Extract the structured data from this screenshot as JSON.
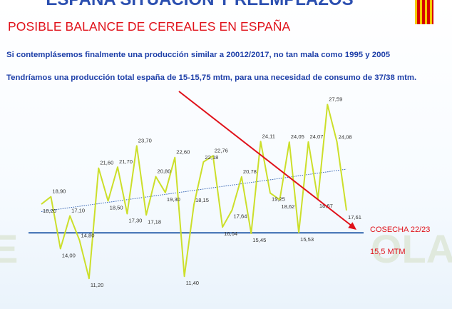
{
  "header": {
    "title": "ESPAÑA SITUACIÓN Y REEMPLAZOS",
    "subtitle": "POSIBLE BALANCE DE CEREALES EN ESPAÑA"
  },
  "notes": {
    "line1": "Si contemplásemos finalmente una producción similar a 20012/2017, no tan mala como 1995 y 2005",
    "line2": "Tendríamos una producción total españa de 15-15,75 mtm, para una necesidad de consumo de 37/38 mtm."
  },
  "watermark": {
    "left": "E",
    "right": "OLA"
  },
  "colors": {
    "series": "#ccdf2a",
    "trend": "#2f5fb0",
    "baseline": "#2e63ad",
    "arrow": "#e0111a",
    "title": "#2b4fb0",
    "subtitle": "#e0111a",
    "notes": "#1d3fa8"
  },
  "chart_data": {
    "type": "line",
    "series": [
      {
        "values": [
          18.2,
          18.9,
          14.0,
          17.1,
          14.8,
          11.2,
          21.6,
          18.5,
          21.7,
          17.3,
          23.7,
          17.18,
          20.8,
          19.3,
          22.6,
          11.4,
          18.15,
          22.18,
          22.76,
          16.04,
          17.64,
          20.78,
          15.45,
          24.11,
          19.25,
          18.62,
          24.05,
          15.53,
          24.07,
          18.67,
          27.59,
          24.08,
          17.61
        ],
        "labels": [
          "18,20",
          "18,90",
          "14,00",
          "17,10",
          "14,80",
          "11,20",
          "21,60",
          "18,50",
          "21,70",
          "17,30",
          "23,70",
          "17,18",
          "20,80",
          "19,30",
          "22,60",
          "11,40",
          "18,15",
          "22,18",
          "22,76",
          "16,04",
          "17,64",
          "20,78",
          "15,45",
          "24,11",
          "19,25",
          "18,62",
          "24,05",
          "15,53",
          "24,07",
          "18,67",
          "27,59",
          "24,08",
          "17,61"
        ]
      }
    ],
    "trend_line": {
      "start": 17.5,
      "end": 21.5
    },
    "reference_line": {
      "value": 15.5
    },
    "annotations": {
      "harvest": "COSECHA 22/23",
      "reference": "15,5 MTM"
    },
    "ylim": [
      10,
      28.5
    ],
    "grid": false,
    "legend": "none"
  }
}
